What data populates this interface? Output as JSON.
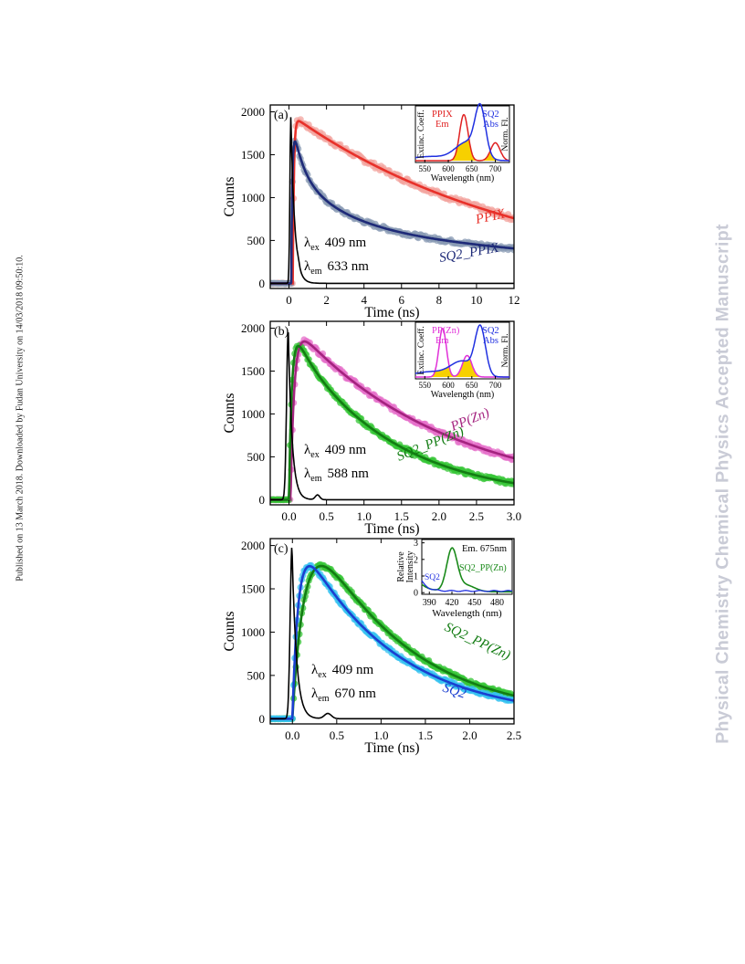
{
  "page": {
    "side_left": "Published on 13 March 2018. Downloaded by Fudan University on 14/03/2018 09:50:10.",
    "side_right": "Physical Chemistry Chemical Physics Accepted Manuscript"
  },
  "colors": {
    "ppix_line": "#e8312a",
    "ppix_dots": "#f3a49f",
    "sq2_line": "#1e2a78",
    "sq2_dots": "#8a9bb4",
    "ppzn_line": "#a4237f",
    "ppzn_dots": "#e56fc9",
    "sq2ppzn_line": "#137c13",
    "sq2ppzn_dots": "#35c635",
    "sq2c_line": "#1b3fd0",
    "sq2c_dots": "#36c2f0",
    "irf": "#000000",
    "fill_yellow": "#f7d000"
  },
  "chart_data": [
    {
      "type": "line",
      "panel": "(a)",
      "xlabel": "Time (ns)",
      "ylabel": "Counts",
      "xlim": [
        -1,
        12
      ],
      "ylim": [
        -60,
        2080
      ],
      "xticks": [
        "0",
        "2",
        "4",
        "6",
        "8",
        "10",
        "12"
      ],
      "yticks": [
        "0",
        "500",
        "1000",
        "1500",
        "2000"
      ],
      "ann_ex": "409 nm",
      "ann_em": "633 nm",
      "series": [
        {
          "name": "PPIX",
          "model": "rise_decay",
          "params": {
            "t0": 0.2,
            "rise": 0.06,
            "a": [
              [
                1,
                12.5
              ]
            ],
            "amp": 1950
          }
        },
        {
          "name": "SQ2_PPIX",
          "model": "rise_decay",
          "params": {
            "t0": 0.12,
            "rise": 0.06,
            "a": [
              [
                0.32,
                0.55
              ],
              [
                0.33,
                2.6
              ],
              [
                0.35,
                22
              ]
            ],
            "amp": 1960
          }
        },
        {
          "name": "",
          "model": "irf",
          "params": {
            "t0": 0.1,
            "sigma": 0.05,
            "decay": 0.2,
            "amp": 1950,
            "bump": [
              0.5,
              0.06,
              35
            ]
          }
        }
      ],
      "inset": {
        "xlabel": "Wavelength (nm)",
        "ylabel_left": "Extinc. Coeff.",
        "ylabel_right": "Norm. Fl.",
        "xlim": [
          530,
          730
        ],
        "xticks": [
          "550",
          "600",
          "650",
          "700"
        ],
        "label_em": [
          "PPIX",
          "Em"
        ],
        "label_abs": [
          "SQ2",
          "Abs"
        ],
        "em_curve": [
          [
            0.9,
            633,
            9
          ],
          [
            0.35,
            700,
            10
          ]
        ],
        "abs_curve": [
          [
            0.08,
            560,
            40
          ],
          [
            0.35,
            640,
            25
          ],
          [
            0.92,
            668,
            11
          ]
        ],
        "overlap": [
          [
            0.25,
            633,
            10
          ],
          [
            0.45,
            660,
            8
          ],
          [
            0.28,
            700,
            9
          ]
        ]
      }
    },
    {
      "type": "line",
      "panel": "(b)",
      "xlabel": "Time (ns)",
      "ylabel": "Counts",
      "xlim": [
        -0.25,
        3.0
      ],
      "ylim": [
        -60,
        2080
      ],
      "xticks": [
        "0.0",
        "0.5",
        "1.0",
        "1.5",
        "2.0",
        "2.5",
        "3.0"
      ],
      "yticks": [
        "0",
        "500",
        "1000",
        "1500",
        "2000"
      ],
      "ann_ex": "409 nm",
      "ann_em": "588 nm",
      "series": [
        {
          "name": "PP(Zn)",
          "model": "rise_decay",
          "params": {
            "t0": 0.02,
            "rise": 0.05,
            "a": [
              [
                1,
                2.05
              ]
            ],
            "amp": 2070
          }
        },
        {
          "name": "SQ2_PP(Zn)",
          "model": "rise_decay",
          "params": {
            "t0": 0.0,
            "rise": 0.04,
            "a": [
              [
                0.12,
                0.15
              ],
              [
                0.88,
                1.3
              ]
            ],
            "amp": 2200
          }
        },
        {
          "name": "",
          "model": "irf",
          "params": {
            "t0": -0.01,
            "sigma": 0.022,
            "decay": 0.05,
            "amp": 1990,
            "bump": [
              0.38,
              0.03,
              55
            ]
          }
        }
      ],
      "inset": {
        "xlabel": "Wavelength (nm)",
        "ylabel_left": "Extinc. Coeff.",
        "ylabel_right": "Norm. Fl.",
        "xlim": [
          530,
          730
        ],
        "xticks": [
          "550",
          "600",
          "650",
          "700"
        ],
        "label_em": [
          "PP(Zn)",
          "Em"
        ],
        "label_abs": [
          "SQ2",
          "Abs"
        ],
        "em_curve": [
          [
            0.95,
            588,
            8
          ],
          [
            0.42,
            640,
            10
          ]
        ],
        "abs_curve": [
          [
            0.1,
            560,
            35
          ],
          [
            0.3,
            630,
            25
          ],
          [
            0.92,
            668,
            11
          ]
        ],
        "overlap": [
          [
            0.18,
            600,
            12
          ],
          [
            0.35,
            638,
            12
          ]
        ]
      }
    },
    {
      "type": "line",
      "panel": "(c)",
      "xlabel": "Time (ns)",
      "ylabel": "Counts",
      "xlim": [
        -0.25,
        2.5
      ],
      "ylim": [
        -60,
        2080
      ],
      "xticks": [
        "0.0",
        "0.5",
        "1.0",
        "1.5",
        "2.0",
        "2.5"
      ],
      "yticks": [
        "0",
        "500",
        "1000",
        "1500",
        "2000"
      ],
      "ann_ex": "409 nm",
      "ann_em": "670 nm",
      "series": [
        {
          "name": "SQ2_PP(Zn)",
          "model": "rise_decay",
          "params": {
            "t0": 0.0,
            "rise": 0.16,
            "a": [
              [
                1,
                1.07
              ]
            ],
            "amp": 2750
          }
        },
        {
          "name": "SQ2",
          "model": "rise_decay",
          "params": {
            "t0": 0.0,
            "rise": 0.07,
            "a": [
              [
                1,
                1.05
              ]
            ],
            "amp": 2260
          }
        },
        {
          "name": "",
          "model": "irf",
          "params": {
            "t0": -0.005,
            "sigma": 0.02,
            "decay": 0.05,
            "amp": 1990,
            "bump": [
              0.4,
              0.04,
              60
            ]
          }
        }
      ],
      "inset": {
        "xlabel": "Wavelength (nm)",
        "ylabel_left": "Relative Intensity",
        "xlim": [
          380,
          500
        ],
        "ylim": [
          -0.1,
          3.2
        ],
        "xticks": [
          "390",
          "420",
          "450",
          "480"
        ],
        "yticks": [
          "0",
          "1",
          "2",
          "3"
        ],
        "label_top": "Em. 675nm",
        "label_green": "SQ2_PP(Zn)",
        "label_blue": "SQ2"
      }
    }
  ],
  "symbols": {
    "lambda": "λ",
    "ex": "ex",
    "em": "em"
  }
}
